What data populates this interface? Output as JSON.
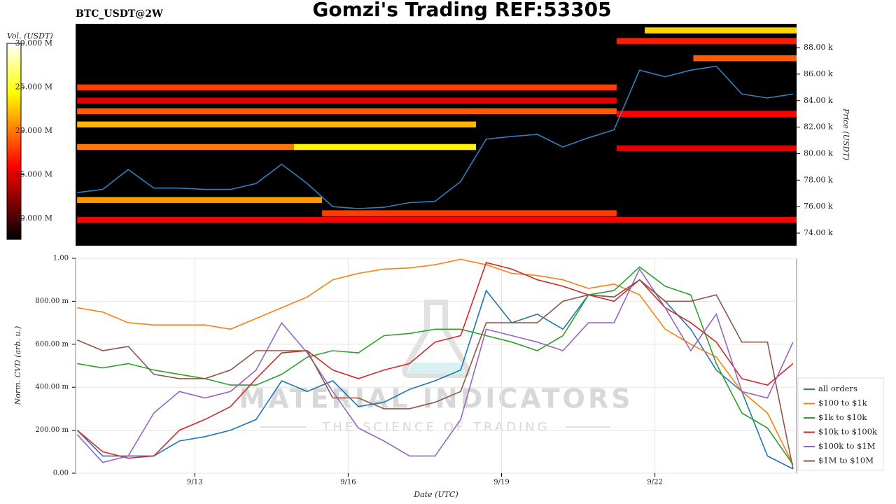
{
  "chart_data": [
    {
      "type": "heatmap",
      "title": "Gomzi's Trading REF:53305",
      "subtitle": "BTC_USDT@2W",
      "y_label": "Price (USDT)",
      "colorbar_label": "Vol. (USDT)",
      "xlim": [
        10.67,
        24.77
      ],
      "ylim": [
        73050,
        89800
      ],
      "yticks": [
        {
          "value": 74000,
          "label": "74.00 k"
        },
        {
          "value": 76000,
          "label": "76.00 k"
        },
        {
          "value": 78000,
          "label": "78.00 k"
        },
        {
          "value": 80000,
          "label": "80.00 k"
        },
        {
          "value": 82000,
          "label": "82.00 k"
        },
        {
          "value": 84000,
          "label": "84.00 k"
        },
        {
          "value": 86000,
          "label": "86.00 k"
        },
        {
          "value": 88000,
          "label": "88.00 k"
        }
      ],
      "clim": [
        7600000,
        30000000
      ],
      "cticks": [
        {
          "value": 10000000,
          "label": "10.000 M"
        },
        {
          "value": 15000000,
          "label": "15.000 M"
        },
        {
          "value": 20000000,
          "label": "20.000 M"
        },
        {
          "value": 25000000,
          "label": "25.000 M"
        },
        {
          "value": 30000000,
          "label": "30.000 M"
        }
      ],
      "bands": [
        {
          "price": 89300,
          "from": 21.8,
          "to": 24.77,
          "volume": 23000000
        },
        {
          "price": 88500,
          "from": 21.25,
          "to": 24.77,
          "volume": 17000000
        },
        {
          "price": 87200,
          "from": 22.75,
          "to": 24.77,
          "volume": 19000000
        },
        {
          "price": 85000,
          "from": 10.7,
          "to": 21.25,
          "volume": 18000000
        },
        {
          "price": 84000,
          "from": 10.7,
          "to": 21.25,
          "volume": 15000000
        },
        {
          "price": 83200,
          "from": 10.7,
          "to": 21.25,
          "volume": 19000000
        },
        {
          "price": 82200,
          "from": 10.7,
          "to": 18.5,
          "volume": 22000000
        },
        {
          "price": 83000,
          "from": 21.25,
          "to": 24.77,
          "volume": 16000000
        },
        {
          "price": 80500,
          "from": 10.7,
          "to": 14.94,
          "volume": 20000000
        },
        {
          "price": 80500,
          "from": 14.94,
          "to": 18.5,
          "volume": 24000000
        },
        {
          "price": 80400,
          "from": 21.25,
          "to": 24.77,
          "volume": 15000000
        },
        {
          "price": 76500,
          "from": 10.7,
          "to": 15.49,
          "volume": 21000000
        },
        {
          "price": 75500,
          "from": 15.49,
          "to": 21.25,
          "volume": 18000000
        },
        {
          "price": 75000,
          "from": 10.7,
          "to": 24.77,
          "volume": 16000000
        }
      ],
      "x": [
        10.7,
        11.2,
        11.7,
        12.2,
        12.7,
        13.2,
        13.7,
        14.2,
        14.7,
        15.2,
        15.7,
        16.2,
        16.7,
        17.2,
        17.7,
        18.2,
        18.7,
        19.2,
        19.7,
        20.2,
        20.7,
        21.2,
        21.7,
        22.2,
        22.7,
        23.2,
        23.7,
        24.2,
        24.7
      ],
      "series": [
        {
          "color": "#2f80c0",
          "values": [
            77060,
            77300,
            78800,
            77400,
            77400,
            77300,
            77300,
            77750,
            79200,
            77750,
            76000,
            75850,
            75950,
            76300,
            76400,
            77900,
            81100,
            81300,
            81450,
            80500,
            81200,
            81800,
            86300,
            85800,
            86300,
            86600,
            84500,
            84200,
            84500
          ]
        }
      ]
    },
    {
      "type": "line",
      "x_label": "Date (UTC)",
      "y_label": "Norm. CVD (arb. u.)",
      "watermark": [
        "MATERIAL INDICATORS",
        "THE SCIENCE OF TRADING"
      ],
      "grid": true,
      "legend": "lower right",
      "xlim": [
        10.67,
        24.77
      ],
      "xticks": [
        {
          "value": 13,
          "label": "9/13"
        },
        {
          "value": 16,
          "label": "9/16"
        },
        {
          "value": 19,
          "label": "9/19"
        },
        {
          "value": 22,
          "label": "9/22"
        }
      ],
      "ylim": [
        0,
        1
      ],
      "yticks": [
        {
          "value": 0,
          "label": "0.00"
        },
        {
          "value": 0.2,
          "label": "200.00 m"
        },
        {
          "value": 0.4,
          "label": "400.00 m"
        },
        {
          "value": 0.6,
          "label": "600.00 m"
        },
        {
          "value": 0.8,
          "label": "800.00 m"
        },
        {
          "value": 1,
          "label": "1.00"
        }
      ],
      "x": [
        10.7,
        11.2,
        11.7,
        12.2,
        12.7,
        13.2,
        13.7,
        14.2,
        14.7,
        15.2,
        15.7,
        16.2,
        16.7,
        17.2,
        17.7,
        18.2,
        18.7,
        19.2,
        19.7,
        20.2,
        20.7,
        21.2,
        21.7,
        22.2,
        22.7,
        23.2,
        23.7,
        24.2,
        24.7
      ],
      "series": [
        {
          "name": "all orders",
          "color": "#1f77b4",
          "values": [
            0.2,
            0.08,
            0.08,
            0.08,
            0.15,
            0.17,
            0.2,
            0.25,
            0.43,
            0.38,
            0.43,
            0.31,
            0.33,
            0.39,
            0.43,
            0.48,
            0.85,
            0.7,
            0.74,
            0.67,
            0.83,
            0.82,
            0.9,
            0.8,
            0.67,
            0.48,
            0.38,
            0.08,
            0.02
          ]
        },
        {
          "name": "$100 to $1k",
          "color": "#ff7f0e",
          "values": [
            0.77,
            0.75,
            0.7,
            0.69,
            0.69,
            0.69,
            0.67,
            0.72,
            0.77,
            0.82,
            0.9,
            0.93,
            0.95,
            0.955,
            0.97,
            0.995,
            0.97,
            0.93,
            0.92,
            0.9,
            0.86,
            0.88,
            0.83,
            0.67,
            0.6,
            0.54,
            0.38,
            0.28,
            0.04
          ]
        },
        {
          "name": "$1k to $10k",
          "color": "#2ca02c",
          "values": [
            0.51,
            0.49,
            0.51,
            0.48,
            0.46,
            0.44,
            0.41,
            0.41,
            0.46,
            0.54,
            0.57,
            0.56,
            0.64,
            0.65,
            0.67,
            0.67,
            0.64,
            0.61,
            0.57,
            0.64,
            0.83,
            0.85,
            0.96,
            0.87,
            0.83,
            0.51,
            0.28,
            0.21,
            0.04
          ]
        },
        {
          "name": "$10k to $100k",
          "color": "#d62728",
          "values": [
            0.2,
            0.1,
            0.07,
            0.08,
            0.2,
            0.25,
            0.31,
            0.44,
            0.56,
            0.57,
            0.48,
            0.44,
            0.48,
            0.51,
            0.61,
            0.64,
            0.98,
            0.95,
            0.9,
            0.87,
            0.83,
            0.8,
            0.9,
            0.77,
            0.7,
            0.61,
            0.44,
            0.41,
            0.51
          ]
        },
        {
          "name": "$100k to $1M",
          "color": "#9467bd",
          "values": [
            0.18,
            0.05,
            0.08,
            0.28,
            0.38,
            0.35,
            0.38,
            0.48,
            0.7,
            0.56,
            0.38,
            0.21,
            0.15,
            0.08,
            0.08,
            0.25,
            0.67,
            0.64,
            0.61,
            0.57,
            0.7,
            0.7,
            0.95,
            0.77,
            0.57,
            0.74,
            0.38,
            0.35,
            0.61
          ]
        },
        {
          "name": "$1M to $10M",
          "color": "#8c564b",
          "values": [
            0.62,
            0.57,
            0.59,
            0.46,
            0.44,
            0.44,
            0.48,
            0.57,
            0.57,
            0.57,
            0.35,
            0.35,
            0.3,
            0.3,
            0.33,
            0.38,
            0.7,
            0.7,
            0.7,
            0.8,
            0.83,
            0.82,
            0.9,
            0.8,
            0.8,
            0.83,
            0.61,
            0.61,
            0.02
          ]
        }
      ]
    }
  ]
}
